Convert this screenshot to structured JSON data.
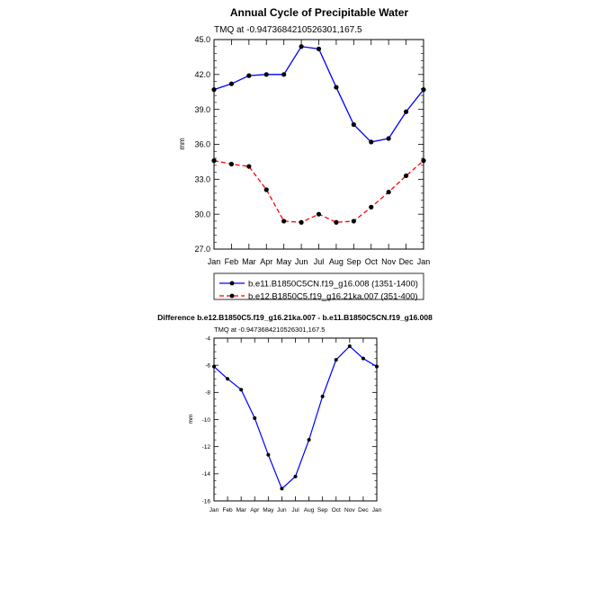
{
  "chart_data": [
    {
      "type": "line",
      "title": "Annual Cycle of Precipitable Water",
      "subtitle": "TMQ at -0.9473684210526301,167.5",
      "ylabel": "mm",
      "xlabel": "",
      "categories": [
        "Jan",
        "Feb",
        "Mar",
        "Apr",
        "May",
        "Jun",
        "Jul",
        "Aug",
        "Sep",
        "Oct",
        "Nov",
        "Dec",
        "Jan"
      ],
      "ylim": [
        27.0,
        45.0
      ],
      "yticks": [
        "27.0",
        "30.0",
        "33.0",
        "36.0",
        "39.0",
        "42.0",
        "45.0"
      ],
      "legend_position": "below",
      "series": [
        {
          "name": "b.e11.B1850C5CN.f19_g16.008 (1351-1400)",
          "color": "#0000ff",
          "dash": "solid",
          "values": [
            40.7,
            41.2,
            41.9,
            42.0,
            42.0,
            44.4,
            44.2,
            40.9,
            37.7,
            36.2,
            36.5,
            38.8,
            40.7
          ]
        },
        {
          "name": "b.e12.B1850C5.f19_g16.21ka.007 (351-400)",
          "color": "#ff0000",
          "dash": "dashed",
          "values": [
            34.6,
            34.3,
            34.1,
            32.1,
            29.4,
            29.3,
            30.0,
            29.3,
            29.4,
            30.6,
            31.9,
            33.3,
            34.6
          ]
        }
      ]
    },
    {
      "type": "line",
      "title": "Difference b.e12.B1850C5.f19_g16.21ka.007 - b.e11.B1850C5CN.f19_g16.008",
      "subtitle": "TMQ at -0.9473684210526301,167.5",
      "ylabel": "mm",
      "xlabel": "",
      "categories": [
        "Jan",
        "Feb",
        "Mar",
        "Apr",
        "May",
        "Jun",
        "Jul",
        "Aug",
        "Sep",
        "Oct",
        "Nov",
        "Dec",
        "Jan"
      ],
      "ylim": [
        -16,
        -4
      ],
      "yticks": [
        "-16",
        "-14",
        "-12",
        "-10",
        "-8",
        "-6",
        "-4"
      ],
      "series": [
        {
          "name": "",
          "color": "#0000ff",
          "dash": "solid",
          "values": [
            -6.1,
            -7.0,
            -7.8,
            -9.9,
            -12.6,
            -15.1,
            -14.2,
            -11.5,
            -8.3,
            -5.6,
            -4.6,
            -5.5,
            -6.1
          ]
        }
      ]
    }
  ]
}
